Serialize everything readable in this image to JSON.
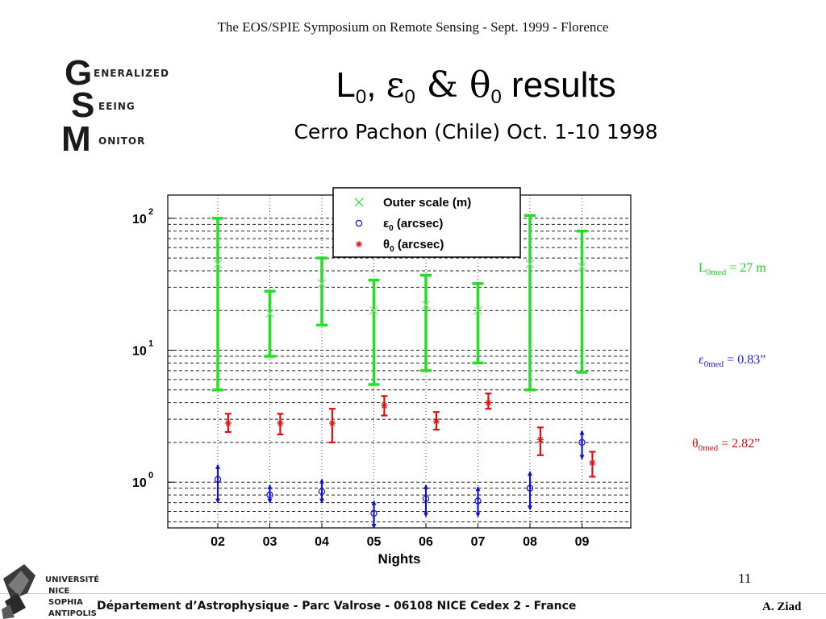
{
  "header": {
    "text": "The EOS/SPIE Symposium on  Remote Sensing - Sept. 1999 - Florence"
  },
  "title": {
    "l_part": "L",
    "sub0_a": "0",
    "comma": ", ",
    "eps": "ε",
    "sub0_b": "0",
    "amp": " & ",
    "theta": "θ",
    "sub0_c": "0",
    "rest": " results",
    "subtitle": "Cerro Pachon (Chile) Oct. 1-10 1998"
  },
  "logo": {
    "letters": [
      "G",
      "S",
      "M"
    ],
    "words": [
      "ENERALIZED",
      "EEING",
      "ONITOR"
    ]
  },
  "annotations": {
    "l0": {
      "sym": "L",
      "sub": "0med",
      "val": " = 27 m"
    },
    "e0": {
      "sym": "ε",
      "sub": "0med",
      "val": " = 0.83”"
    },
    "t0": {
      "sym": "θ",
      "sub": "0med",
      "val": " = 2.82”"
    }
  },
  "footer": {
    "page": "11",
    "text": "Département d’Astrophysique - Parc Valrose - 06108 NICE Cedex 2 - France",
    "author": "A. Ziad",
    "uni_lines": [
      "UNIVERSITÉ",
      "NICE",
      "SOPHIA",
      "ANTIPOLIS"
    ]
  },
  "colors": {
    "outer": "#22e022",
    "eps": "#1010d0",
    "theta": "#e01010"
  },
  "chart_data": {
    "type": "scatter",
    "xlabel": "Nights",
    "ylabel": "",
    "yscale": "log",
    "ylim": [
      0.45,
      150
    ],
    "categories": [
      "02",
      "03",
      "04",
      "05",
      "06",
      "07",
      "08",
      "09"
    ],
    "ytick_labels": [
      {
        "base": "10",
        "exp": "0",
        "value": 1
      },
      {
        "base": "10",
        "exp": "1",
        "value": 10
      },
      {
        "base": "10",
        "exp": "2",
        "value": 100
      }
    ],
    "grid": "horizontal dashed",
    "legend_position": "top-center",
    "series": [
      {
        "name_main": "Outer scale (m)",
        "name_sym": "",
        "name_sub": "",
        "marker": "x",
        "color": "#22e022",
        "offset": 0,
        "values": [
          45,
          19,
          32,
          20,
          22,
          20,
          45,
          43
        ],
        "low": [
          5,
          9,
          15.5,
          5.5,
          7,
          8,
          5,
          6.8
        ],
        "high": [
          100,
          28,
          50,
          34,
          37,
          32,
          105,
          80
        ]
      },
      {
        "name_main": " (arcsec)",
        "name_sym": "ε",
        "name_sub": "0",
        "marker": "o",
        "color": "#1010d0",
        "offset": 0,
        "values": [
          1.05,
          0.8,
          0.85,
          0.58,
          0.75,
          0.72,
          0.9,
          2.0
        ],
        "low": [
          0.7,
          0.7,
          0.7,
          0.45,
          0.55,
          0.55,
          0.62,
          1.5
        ],
        "high": [
          1.35,
          0.95,
          1.05,
          0.72,
          0.95,
          0.92,
          1.2,
          2.45
        ]
      },
      {
        "name_main": " (arcsec)",
        "name_sym": "θ",
        "name_sub": "0",
        "marker": "*",
        "color": "#e01010",
        "offset": 0.2,
        "values": [
          2.8,
          2.8,
          2.8,
          3.8,
          2.9,
          4.0,
          2.1,
          1.4
        ],
        "low": [
          2.4,
          2.3,
          2.0,
          3.2,
          2.5,
          3.6,
          1.6,
          1.1
        ],
        "high": [
          3.3,
          3.3,
          3.6,
          4.5,
          3.4,
          4.7,
          2.6,
          1.7
        ]
      }
    ]
  }
}
